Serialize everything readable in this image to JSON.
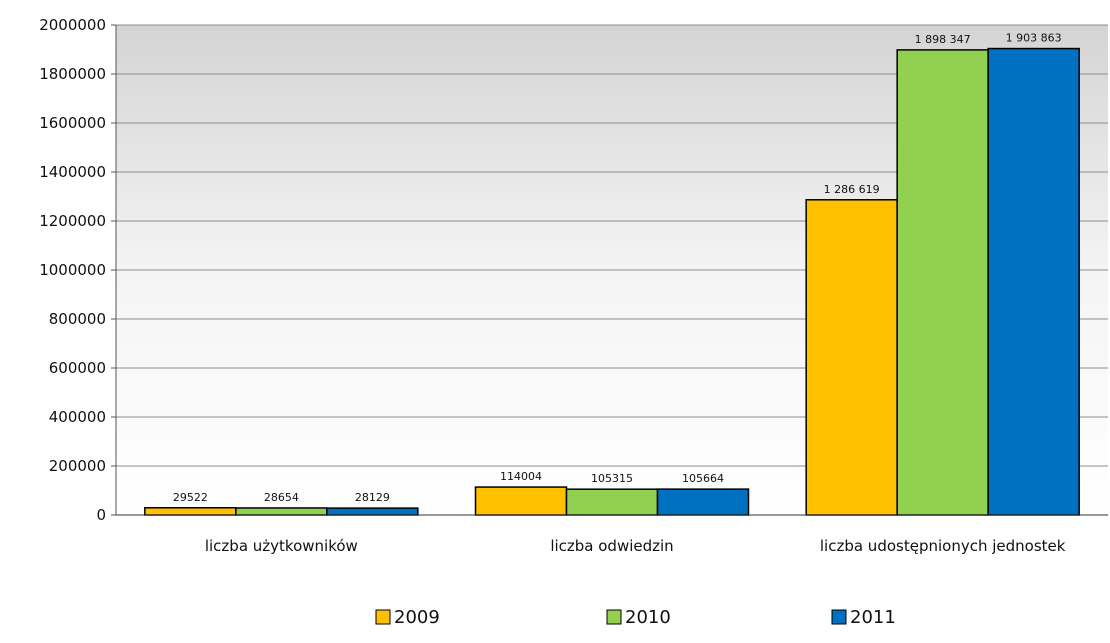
{
  "chart_data": {
    "type": "bar",
    "categories": [
      "liczba użytkowników",
      "liczba odwiedzin",
      "liczba udostępnionych jednostek"
    ],
    "series": [
      {
        "name": "2009",
        "color": "#FFC000",
        "values": [
          29522,
          114004,
          1286619
        ],
        "labels": [
          "29522",
          "114004",
          "1 286 619"
        ]
      },
      {
        "name": "2010",
        "color": "#92D050",
        "values": [
          28654,
          105315,
          1898347
        ],
        "labels": [
          "28654",
          "105315",
          "1 898 347"
        ]
      },
      {
        "name": "2011",
        "color": "#0070C0",
        "values": [
          28129,
          105664,
          1903863
        ],
        "labels": [
          "28129",
          "105664",
          "1 903 863"
        ]
      }
    ],
    "yticks": [
      "0",
      "200000",
      "400000",
      "600000",
      "800000",
      "1000000",
      "1200000",
      "1400000",
      "1600000",
      "1800000",
      "2000000"
    ],
    "ylim": [
      0,
      2000000
    ],
    "grid": true,
    "legend": "bottom",
    "title": "",
    "xlabel": "",
    "ylabel": ""
  }
}
